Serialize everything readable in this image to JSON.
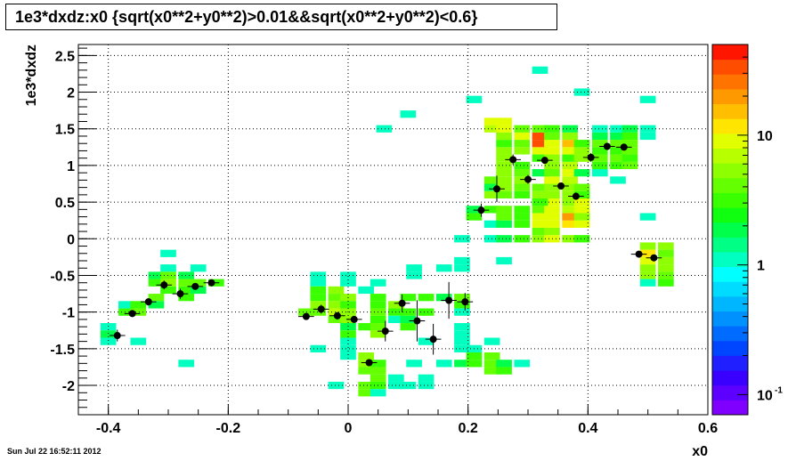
{
  "chart_data": {
    "type": "heatmap",
    "title": "1e3*dxdz:x0 {sqrt(x0**2+y0**2)>0.01&&sqrt(x0**2+y0**2)<0.6}",
    "xlabel": "x0",
    "ylabel": "1e3*dxdz",
    "xlim": [
      -0.45,
      0.6
    ],
    "ylim": [
      -2.4,
      2.65
    ],
    "x_ticks": [
      -0.4,
      -0.2,
      0,
      0.2,
      0.4,
      0.6
    ],
    "x_tick_labels": [
      "-0.4",
      "-0.2",
      "0",
      "0.2",
      "0.4",
      "0.6"
    ],
    "y_ticks": [
      -2,
      -1.5,
      -1,
      -0.5,
      0,
      0.5,
      1,
      1.5,
      2,
      2.5
    ],
    "y_tick_labels": [
      "-2",
      "-1.5",
      "-1",
      "-0.5",
      "0",
      "0.5",
      "1",
      "1.5",
      "2",
      "2.5"
    ],
    "grid": true,
    "log_z": true,
    "zlim": [
      0.07,
      50
    ],
    "colorbar_labels": [
      "10",
      "1",
      "10"
    ],
    "colorbar_label_values": [
      10,
      1,
      0.1
    ],
    "colorbar_exponent": "-1",
    "bin_width_x": 0.02625,
    "bin_height_y": 0.1,
    "bins": [
      [
        -0.4,
        -1.2,
        1
      ],
      [
        -0.4,
        -1.3,
        2
      ],
      [
        -0.4,
        -1.4,
        1
      ],
      [
        -0.37,
        -1.0,
        3
      ],
      [
        -0.37,
        -0.9,
        1
      ],
      [
        -0.35,
        -1.4,
        1
      ],
      [
        -0.35,
        -0.9,
        3
      ],
      [
        -0.35,
        -1.0,
        4
      ],
      [
        -0.32,
        -0.5,
        2
      ],
      [
        -0.32,
        -0.6,
        3
      ],
      [
        -0.32,
        -0.8,
        4
      ],
      [
        -0.32,
        -0.9,
        2
      ],
      [
        -0.3,
        -0.2,
        1
      ],
      [
        -0.3,
        -0.4,
        1
      ],
      [
        -0.3,
        -0.5,
        4
      ],
      [
        -0.3,
        -0.6,
        5
      ],
      [
        -0.3,
        -0.7,
        3
      ],
      [
        -0.27,
        -0.5,
        2
      ],
      [
        -0.27,
        -0.6,
        4
      ],
      [
        -0.27,
        -0.7,
        3
      ],
      [
        -0.27,
        -0.8,
        3
      ],
      [
        -0.27,
        -1.7,
        1
      ],
      [
        -0.25,
        -0.4,
        1
      ],
      [
        -0.25,
        -0.6,
        4
      ],
      [
        -0.25,
        -0.7,
        2
      ],
      [
        -0.22,
        -0.6,
        3
      ],
      [
        -0.07,
        -1.0,
        4
      ],
      [
        -0.05,
        -0.5,
        1
      ],
      [
        -0.05,
        -0.6,
        1
      ],
      [
        -0.05,
        -0.7,
        3
      ],
      [
        -0.05,
        -0.8,
        3
      ],
      [
        -0.05,
        -0.9,
        5
      ],
      [
        -0.05,
        -1.0,
        4
      ],
      [
        -0.05,
        -1.5,
        1
      ],
      [
        -0.02,
        -0.7,
        5
      ],
      [
        -0.02,
        -0.8,
        4
      ],
      [
        -0.02,
        -0.9,
        5
      ],
      [
        -0.02,
        -1.0,
        7
      ],
      [
        -0.02,
        -1.1,
        4
      ],
      [
        -0.02,
        -2.0,
        1
      ],
      [
        0.0,
        -0.8,
        6
      ],
      [
        0.0,
        -0.9,
        3
      ],
      [
        0.0,
        -1.0,
        5
      ],
      [
        0.0,
        -1.1,
        6
      ],
      [
        0.0,
        -1.2,
        2
      ],
      [
        0.0,
        -1.3,
        3
      ],
      [
        0.0,
        -1.4,
        1
      ],
      [
        0.0,
        -1.5,
        1
      ],
      [
        0.0,
        -1.6,
        1
      ],
      [
        0.0,
        -0.5,
        1
      ],
      [
        0.0,
        -0.6,
        1
      ],
      [
        0.03,
        -1.6,
        6
      ],
      [
        0.03,
        -1.7,
        6
      ],
      [
        0.03,
        -1.8,
        4
      ],
      [
        0.03,
        -2.0,
        4
      ],
      [
        0.03,
        -2.1,
        4
      ],
      [
        0.03,
        -1.2,
        3
      ],
      [
        0.03,
        -0.7,
        1
      ],
      [
        0.05,
        -1.7,
        3
      ],
      [
        0.05,
        -1.8,
        4
      ],
      [
        0.05,
        -1.9,
        4
      ],
      [
        0.05,
        -2.0,
        3
      ],
      [
        0.05,
        -2.1,
        1
      ],
      [
        0.05,
        -0.6,
        1
      ],
      [
        0.05,
        -0.8,
        3
      ],
      [
        0.05,
        -0.9,
        3
      ],
      [
        0.05,
        -1.0,
        4
      ],
      [
        0.05,
        -1.1,
        3
      ],
      [
        0.05,
        -1.2,
        4
      ],
      [
        0.05,
        -1.3,
        5
      ],
      [
        0.08,
        -0.9,
        6
      ],
      [
        0.08,
        -1.0,
        3
      ],
      [
        0.08,
        -1.1,
        1
      ],
      [
        0.08,
        -1.9,
        1
      ],
      [
        0.08,
        -2.0,
        1
      ],
      [
        0.1,
        -0.8,
        3
      ],
      [
        0.1,
        -1.0,
        3
      ],
      [
        0.1,
        -1.1,
        2
      ],
      [
        0.1,
        -1.2,
        3
      ],
      [
        0.1,
        -2.0,
        1
      ],
      [
        0.11,
        -0.4,
        1
      ],
      [
        0.11,
        -0.5,
        1
      ],
      [
        0.11,
        -1.7,
        1
      ],
      [
        0.13,
        -0.8,
        3
      ],
      [
        0.13,
        -1.0,
        3
      ],
      [
        0.13,
        -1.4,
        1
      ],
      [
        0.13,
        -1.9,
        1
      ],
      [
        0.13,
        -2.0,
        1
      ],
      [
        0.16,
        -0.4,
        1
      ],
      [
        0.16,
        -0.8,
        2
      ],
      [
        0.16,
        -1.7,
        1
      ],
      [
        0.19,
        -0.3,
        1
      ],
      [
        0.19,
        -0.4,
        1
      ],
      [
        0.19,
        -0.8,
        4
      ],
      [
        0.19,
        -0.9,
        3
      ],
      [
        0.19,
        -1.0,
        1
      ],
      [
        0.19,
        -1.2,
        1
      ],
      [
        0.19,
        -1.3,
        1
      ],
      [
        0.19,
        -1.4,
        1
      ],
      [
        0.19,
        -1.5,
        1
      ],
      [
        0.19,
        -1.7,
        2
      ],
      [
        0.19,
        0.0,
        1
      ],
      [
        0.21,
        -1.6,
        3
      ],
      [
        0.21,
        -1.7,
        3
      ],
      [
        0.21,
        -1.5,
        1
      ],
      [
        0.21,
        0.3,
        3
      ],
      [
        0.21,
        0.4,
        2
      ],
      [
        0.21,
        1.9,
        1
      ],
      [
        0.24,
        -1.4,
        1
      ],
      [
        0.24,
        -1.6,
        4
      ],
      [
        0.24,
        -1.7,
        4
      ],
      [
        0.24,
        -1.8,
        4
      ],
      [
        0.24,
        0.0,
        1
      ],
      [
        0.24,
        0.2,
        1
      ],
      [
        0.24,
        0.4,
        3
      ],
      [
        0.24,
        0.6,
        5
      ],
      [
        0.24,
        0.7,
        2
      ],
      [
        0.24,
        0.8,
        4
      ],
      [
        0.24,
        1.5,
        7
      ],
      [
        0.24,
        1.6,
        8
      ],
      [
        0.26,
        -0.3,
        1
      ],
      [
        0.26,
        -1.7,
        2
      ],
      [
        0.26,
        -1.8,
        3
      ],
      [
        0.26,
        0.0,
        2
      ],
      [
        0.26,
        0.2,
        2
      ],
      [
        0.26,
        0.3,
        4
      ],
      [
        0.26,
        0.4,
        4
      ],
      [
        0.26,
        0.6,
        4
      ],
      [
        0.26,
        0.7,
        5
      ],
      [
        0.26,
        0.8,
        5
      ],
      [
        0.26,
        0.9,
        6
      ],
      [
        0.26,
        1.0,
        5
      ],
      [
        0.26,
        1.1,
        6
      ],
      [
        0.26,
        1.2,
        6
      ],
      [
        0.26,
        1.3,
        3
      ],
      [
        0.26,
        1.4,
        5
      ],
      [
        0.26,
        1.5,
        9
      ],
      [
        0.26,
        1.6,
        10
      ],
      [
        0.29,
        0.0,
        3
      ],
      [
        0.29,
        0.2,
        3
      ],
      [
        0.29,
        0.3,
        3
      ],
      [
        0.29,
        0.4,
        3
      ],
      [
        0.29,
        0.6,
        3
      ],
      [
        0.29,
        0.7,
        4
      ],
      [
        0.29,
        0.8,
        5
      ],
      [
        0.29,
        0.9,
        4
      ],
      [
        0.29,
        1.0,
        3
      ],
      [
        0.29,
        1.2,
        6
      ],
      [
        0.29,
        1.3,
        4
      ],
      [
        0.29,
        1.4,
        8
      ],
      [
        0.29,
        1.5,
        4
      ],
      [
        0.29,
        -1.7,
        1
      ],
      [
        0.32,
        1.1,
        3
      ],
      [
        0.32,
        1.2,
        8
      ],
      [
        0.32,
        1.3,
        30
      ],
      [
        0.32,
        1.4,
        30
      ],
      [
        0.32,
        1.5,
        4
      ],
      [
        0.32,
        0.0,
        5
      ],
      [
        0.32,
        0.1,
        4
      ],
      [
        0.32,
        0.2,
        8
      ],
      [
        0.32,
        0.3,
        9
      ],
      [
        0.32,
        0.4,
        4
      ],
      [
        0.32,
        0.5,
        3
      ],
      [
        0.32,
        0.6,
        6
      ],
      [
        0.32,
        0.7,
        4
      ],
      [
        0.32,
        0.9,
        2
      ],
      [
        0.32,
        2.3,
        1
      ],
      [
        0.34,
        0.0,
        9
      ],
      [
        0.34,
        0.1,
        6
      ],
      [
        0.34,
        0.2,
        10
      ],
      [
        0.34,
        0.3,
        8
      ],
      [
        0.34,
        0.4,
        9
      ],
      [
        0.34,
        0.5,
        8
      ],
      [
        0.34,
        0.6,
        5
      ],
      [
        0.34,
        0.7,
        6
      ],
      [
        0.34,
        0.8,
        9
      ],
      [
        0.34,
        0.9,
        4
      ],
      [
        0.34,
        1.0,
        5
      ],
      [
        0.34,
        1.1,
        5
      ],
      [
        0.34,
        1.2,
        8
      ],
      [
        0.34,
        1.3,
        9
      ],
      [
        0.34,
        1.4,
        4
      ],
      [
        0.34,
        1.5,
        3
      ],
      [
        0.37,
        0.0,
        5
      ],
      [
        0.37,
        0.2,
        13
      ],
      [
        0.37,
        0.3,
        18
      ],
      [
        0.37,
        0.4,
        7
      ],
      [
        0.37,
        0.5,
        6
      ],
      [
        0.37,
        0.6,
        5
      ],
      [
        0.37,
        0.7,
        5
      ],
      [
        0.37,
        0.8,
        7
      ],
      [
        0.37,
        0.9,
        9
      ],
      [
        0.37,
        1.0,
        7
      ],
      [
        0.37,
        1.1,
        3
      ],
      [
        0.37,
        1.2,
        8
      ],
      [
        0.37,
        1.3,
        16
      ],
      [
        0.37,
        1.4,
        6
      ],
      [
        0.37,
        1.5,
        2
      ],
      [
        0.39,
        0.0,
        3
      ],
      [
        0.39,
        0.2,
        9
      ],
      [
        0.39,
        0.3,
        6
      ],
      [
        0.39,
        0.4,
        9
      ],
      [
        0.39,
        0.5,
        8
      ],
      [
        0.39,
        0.6,
        3
      ],
      [
        0.39,
        0.7,
        4
      ],
      [
        0.39,
        0.9,
        2
      ],
      [
        0.39,
        1.1,
        6
      ],
      [
        0.39,
        1.2,
        5
      ],
      [
        0.39,
        1.3,
        3
      ],
      [
        0.39,
        2.0,
        1
      ],
      [
        0.42,
        0.9,
        1
      ],
      [
        0.42,
        1.0,
        3
      ],
      [
        0.42,
        1.1,
        4
      ],
      [
        0.42,
        1.2,
        3
      ],
      [
        0.42,
        1.3,
        4
      ],
      [
        0.42,
        1.4,
        2
      ],
      [
        0.42,
        1.5,
        1
      ],
      [
        0.45,
        0.8,
        1
      ],
      [
        0.45,
        1.0,
        3
      ],
      [
        0.45,
        1.1,
        4
      ],
      [
        0.45,
        1.2,
        3
      ],
      [
        0.45,
        1.3,
        4
      ],
      [
        0.45,
        1.4,
        2
      ],
      [
        0.45,
        1.5,
        1
      ],
      [
        0.47,
        1.0,
        4
      ],
      [
        0.47,
        1.1,
        3
      ],
      [
        0.47,
        1.2,
        4
      ],
      [
        0.47,
        1.3,
        4
      ],
      [
        0.47,
        1.4,
        3
      ],
      [
        0.47,
        1.5,
        2
      ],
      [
        0.5,
        1.4,
        1
      ],
      [
        0.5,
        1.5,
        1
      ],
      [
        0.5,
        1.9,
        1
      ],
      [
        0.5,
        0.3,
        1
      ],
      [
        0.5,
        -0.1,
        6
      ],
      [
        0.5,
        -0.2,
        12
      ],
      [
        0.5,
        -0.3,
        8
      ],
      [
        0.5,
        -0.4,
        5
      ],
      [
        0.5,
        -0.5,
        5
      ],
      [
        0.5,
        -0.6,
        1
      ],
      [
        0.53,
        -0.1,
        5
      ],
      [
        0.53,
        -0.2,
        4
      ],
      [
        0.53,
        -0.3,
        6
      ],
      [
        0.53,
        -0.4,
        5
      ],
      [
        0.53,
        -0.5,
        4
      ],
      [
        0.53,
        -0.6,
        3
      ],
      [
        0.1,
        1.7,
        1
      ],
      [
        0.06,
        1.5,
        1
      ],
      [
        0.32,
        0.5,
        3
      ]
    ],
    "profile_points": [
      {
        "x": -0.385,
        "y": -1.32,
        "ey": 0.08
      },
      {
        "x": -0.36,
        "y": -1.02,
        "ey": 0.04
      },
      {
        "x": -0.333,
        "y": -0.86,
        "ey": 0.05
      },
      {
        "x": -0.307,
        "y": -0.63,
        "ey": 0.06
      },
      {
        "x": -0.28,
        "y": -0.75,
        "ey": 0.07
      },
      {
        "x": -0.255,
        "y": -0.65,
        "ey": 0.04
      },
      {
        "x": -0.228,
        "y": -0.6,
        "ey": 0.03
      },
      {
        "x": -0.07,
        "y": -1.06,
        "ey": 0.03
      },
      {
        "x": -0.045,
        "y": -0.96,
        "ey": 0.06
      },
      {
        "x": -0.018,
        "y": -1.05,
        "ey": 0.05
      },
      {
        "x": 0.01,
        "y": -1.1,
        "ey": 0.04
      },
      {
        "x": 0.035,
        "y": -1.69,
        "ey": 0.03
      },
      {
        "x": 0.062,
        "y": -1.26,
        "ey": 0.14
      },
      {
        "x": 0.09,
        "y": -0.88,
        "ey": 0.12
      },
      {
        "x": 0.115,
        "y": -1.12,
        "ey": 0.28
      },
      {
        "x": 0.142,
        "y": -1.37,
        "ey": 0.21
      },
      {
        "x": 0.168,
        "y": -0.84,
        "ey": 0.25
      },
      {
        "x": 0.195,
        "y": -0.86,
        "ey": 0.12
      },
      {
        "x": 0.222,
        "y": 0.39,
        "ey": 0.09
      },
      {
        "x": 0.248,
        "y": 0.68,
        "ey": 0.18
      },
      {
        "x": 0.275,
        "y": 1.08,
        "ey": 0.07
      },
      {
        "x": 0.3,
        "y": 0.81,
        "ey": 0.06
      },
      {
        "x": 0.328,
        "y": 1.07,
        "ey": 0.04
      },
      {
        "x": 0.355,
        "y": 0.72,
        "ey": 0.04
      },
      {
        "x": 0.38,
        "y": 0.58,
        "ey": 0.05
      },
      {
        "x": 0.405,
        "y": 1.11,
        "ey": 0.06
      },
      {
        "x": 0.432,
        "y": 1.26,
        "ey": 0.04
      },
      {
        "x": 0.46,
        "y": 1.25,
        "ey": 0.04
      },
      {
        "x": 0.485,
        "y": -0.21,
        "ey": 0.04
      },
      {
        "x": 0.51,
        "y": -0.26,
        "ey": 0.03
      }
    ]
  },
  "footer": {
    "timestamp": "Sun Jul 22 16:52:11 2012"
  }
}
